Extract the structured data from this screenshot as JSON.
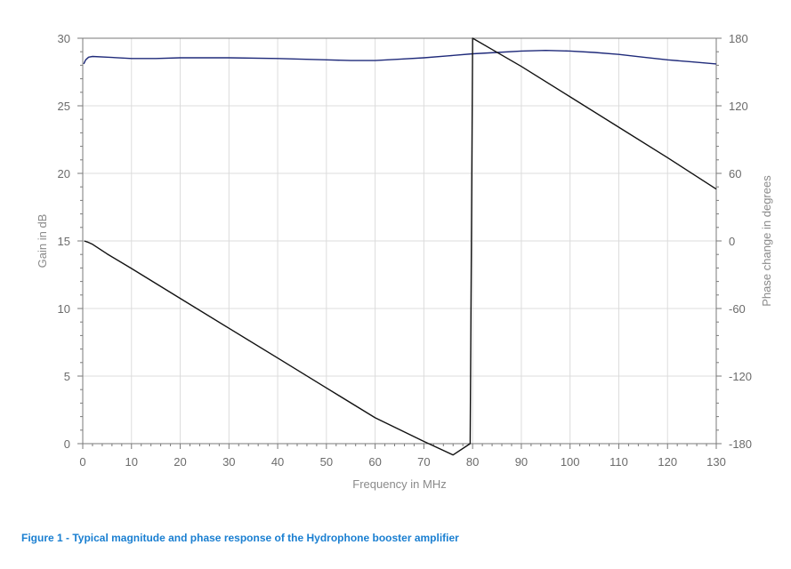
{
  "caption": "Figure 1 - Typical magnitude and phase response of the Hydrophone booster amplifier",
  "chart_data": {
    "type": "line",
    "xlabel": "Frequency in MHz",
    "ylabel": "Gain in dB",
    "y2label": "Phase change in degrees",
    "xlim": [
      0,
      130
    ],
    "ylim": [
      0,
      30
    ],
    "y2lim": [
      -180,
      180
    ],
    "x_ticks": [
      0,
      10,
      20,
      30,
      40,
      50,
      60,
      70,
      80,
      90,
      100,
      110,
      120,
      130
    ],
    "y_ticks": [
      0,
      5,
      10,
      15,
      20,
      25,
      30
    ],
    "y2_ticks": [
      -180,
      -120,
      -60,
      0,
      60,
      120,
      180
    ],
    "grid": true,
    "series": [
      {
        "axis": "left",
        "color": "#1f2a7a",
        "points": [
          [
            0.2,
            28.1
          ],
          [
            0.6,
            28.4
          ],
          [
            1.2,
            28.6
          ],
          [
            2,
            28.65
          ],
          [
            5,
            28.6
          ],
          [
            10,
            28.5
          ],
          [
            15,
            28.5
          ],
          [
            20,
            28.55
          ],
          [
            30,
            28.55
          ],
          [
            40,
            28.5
          ],
          [
            45,
            28.45
          ],
          [
            50,
            28.4
          ],
          [
            55,
            28.35
          ],
          [
            60,
            28.35
          ],
          [
            65,
            28.45
          ],
          [
            70,
            28.55
          ],
          [
            75,
            28.7
          ],
          [
            80,
            28.85
          ],
          [
            85,
            28.95
          ],
          [
            90,
            29.05
          ],
          [
            95,
            29.1
          ],
          [
            100,
            29.05
          ],
          [
            105,
            28.95
          ],
          [
            110,
            28.8
          ],
          [
            115,
            28.6
          ],
          [
            120,
            28.4
          ],
          [
            125,
            28.25
          ],
          [
            130,
            28.1
          ]
        ]
      },
      {
        "axis": "right",
        "color": "#111111",
        "points": [
          [
            0.3,
            0
          ],
          [
            1,
            -1
          ],
          [
            2,
            -3
          ],
          [
            5,
            -11.5
          ],
          [
            10,
            -24.5
          ],
          [
            20,
            -51
          ],
          [
            30,
            -77.5
          ],
          [
            40,
            -104
          ],
          [
            50,
            -130.5
          ],
          [
            60,
            -157
          ],
          [
            70,
            -178
          ],
          [
            76,
            -190
          ],
          [
            79.5,
            -180
          ],
          [
            80,
            180
          ],
          [
            84,
            170
          ],
          [
            90,
            155
          ],
          [
            100,
            128
          ],
          [
            110,
            101
          ],
          [
            120,
            74
          ],
          [
            130,
            46
          ]
        ]
      }
    ]
  }
}
